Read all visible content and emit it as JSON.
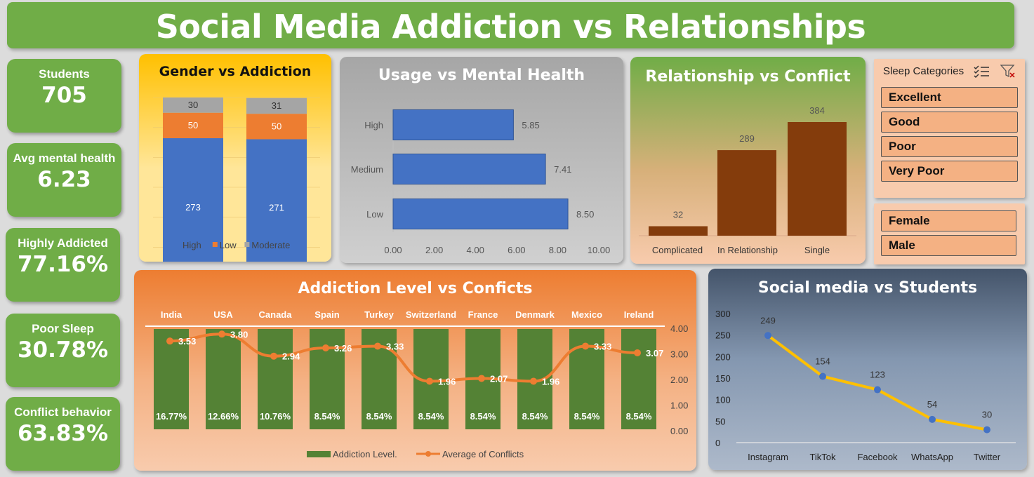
{
  "title": "Social Media Addiction vs Relationships",
  "kpis": [
    {
      "label": "Students",
      "value": "705"
    },
    {
      "label": "Avg mental health",
      "value": "6.23"
    },
    {
      "label": "Highly Addicted",
      "value": "77.16%"
    },
    {
      "label": "Poor Sleep",
      "value": "30.78%"
    },
    {
      "label": "Conflict behavior",
      "value": "63.83%"
    }
  ],
  "slicers": {
    "sleep": {
      "header": "Sleep Categories",
      "items": [
        "Excellent",
        "Good",
        "Poor",
        "Very Poor"
      ]
    },
    "gender": {
      "items": [
        "Female",
        "Male"
      ]
    }
  },
  "colors": {
    "green": "#70ad47",
    "dark_green": "#548235",
    "blue": "#4472c4",
    "orange": "#ed7d31",
    "gray": "#a5a5a5",
    "brown": "#843c0c",
    "yellow": "#ffc000"
  },
  "chart_data": [
    {
      "id": "gender",
      "type": "bar",
      "title": "Gender vs Addiction",
      "categories": [
        "",
        ""
      ],
      "stacked": true,
      "series": [
        {
          "name": "High",
          "values": [
            273,
            271
          ],
          "color": "#4472c4"
        },
        {
          "name": "Low",
          "values": [
            50,
            50
          ],
          "color": "#ed7d31"
        },
        {
          "name": "Moderate",
          "values": [
            30,
            31
          ],
          "color": "#a5a5a5"
        }
      ],
      "legend": "bottom"
    },
    {
      "id": "usage",
      "type": "bar",
      "orientation": "horizontal",
      "title": "Usage vs Mental Health",
      "categories": [
        "High",
        "Medium",
        "Low"
      ],
      "values": [
        5.85,
        7.41,
        8.5
      ],
      "value_labels": [
        "5.85",
        "7.41",
        "8.50"
      ],
      "xticks": [
        "0.00",
        "2.00",
        "4.00",
        "6.00",
        "8.00",
        "10.00"
      ],
      "xlim": [
        0,
        10
      ]
    },
    {
      "id": "relationship",
      "type": "bar",
      "title": "Relationship vs Conflict",
      "categories": [
        "Complicated",
        "In Relationship",
        "Single"
      ],
      "values": [
        32,
        289,
        384
      ]
    },
    {
      "id": "conflicts",
      "type": "bar",
      "title": "Addiction Level vs Conficts",
      "categories": [
        "India",
        "USA",
        "Canada",
        "Spain",
        "Turkey",
        "Switzerland",
        "France",
        "Denmark",
        "Mexico",
        "Ireland"
      ],
      "series": [
        {
          "name": "Addiction Level.",
          "type": "bar",
          "labels": [
            "16.77%",
            "12.66%",
            "10.76%",
            "8.54%",
            "8.54%",
            "8.54%",
            "8.54%",
            "8.54%",
            "8.54%",
            "8.54%"
          ]
        },
        {
          "name": "Average of Conflicts",
          "type": "line",
          "axis": "right",
          "values": [
            3.53,
            3.8,
            2.94,
            3.26,
            3.33,
            1.96,
            2.07,
            1.96,
            3.33,
            3.07
          ],
          "labels": [
            "3.53",
            "3.80",
            "2.94",
            "3.26",
            "3.33",
            "1.96",
            "2.07",
            "1.96",
            "3.33",
            "3.07"
          ]
        }
      ],
      "y2ticks": [
        "4.00",
        "3.00",
        "2.00",
        "1.00",
        "0.00"
      ],
      "y2lim": [
        0,
        4
      ],
      "legend": "bottom"
    },
    {
      "id": "social",
      "type": "line",
      "title": "Social media vs Students",
      "categories": [
        "Instagram",
        "TikTok",
        "Facebook",
        "WhatsApp",
        "Twitter"
      ],
      "values": [
        249,
        154,
        123,
        54,
        30
      ],
      "yticks": [
        "300",
        "250",
        "200",
        "150",
        "100",
        "50",
        "0"
      ],
      "ylim": [
        0,
        300
      ]
    }
  ]
}
